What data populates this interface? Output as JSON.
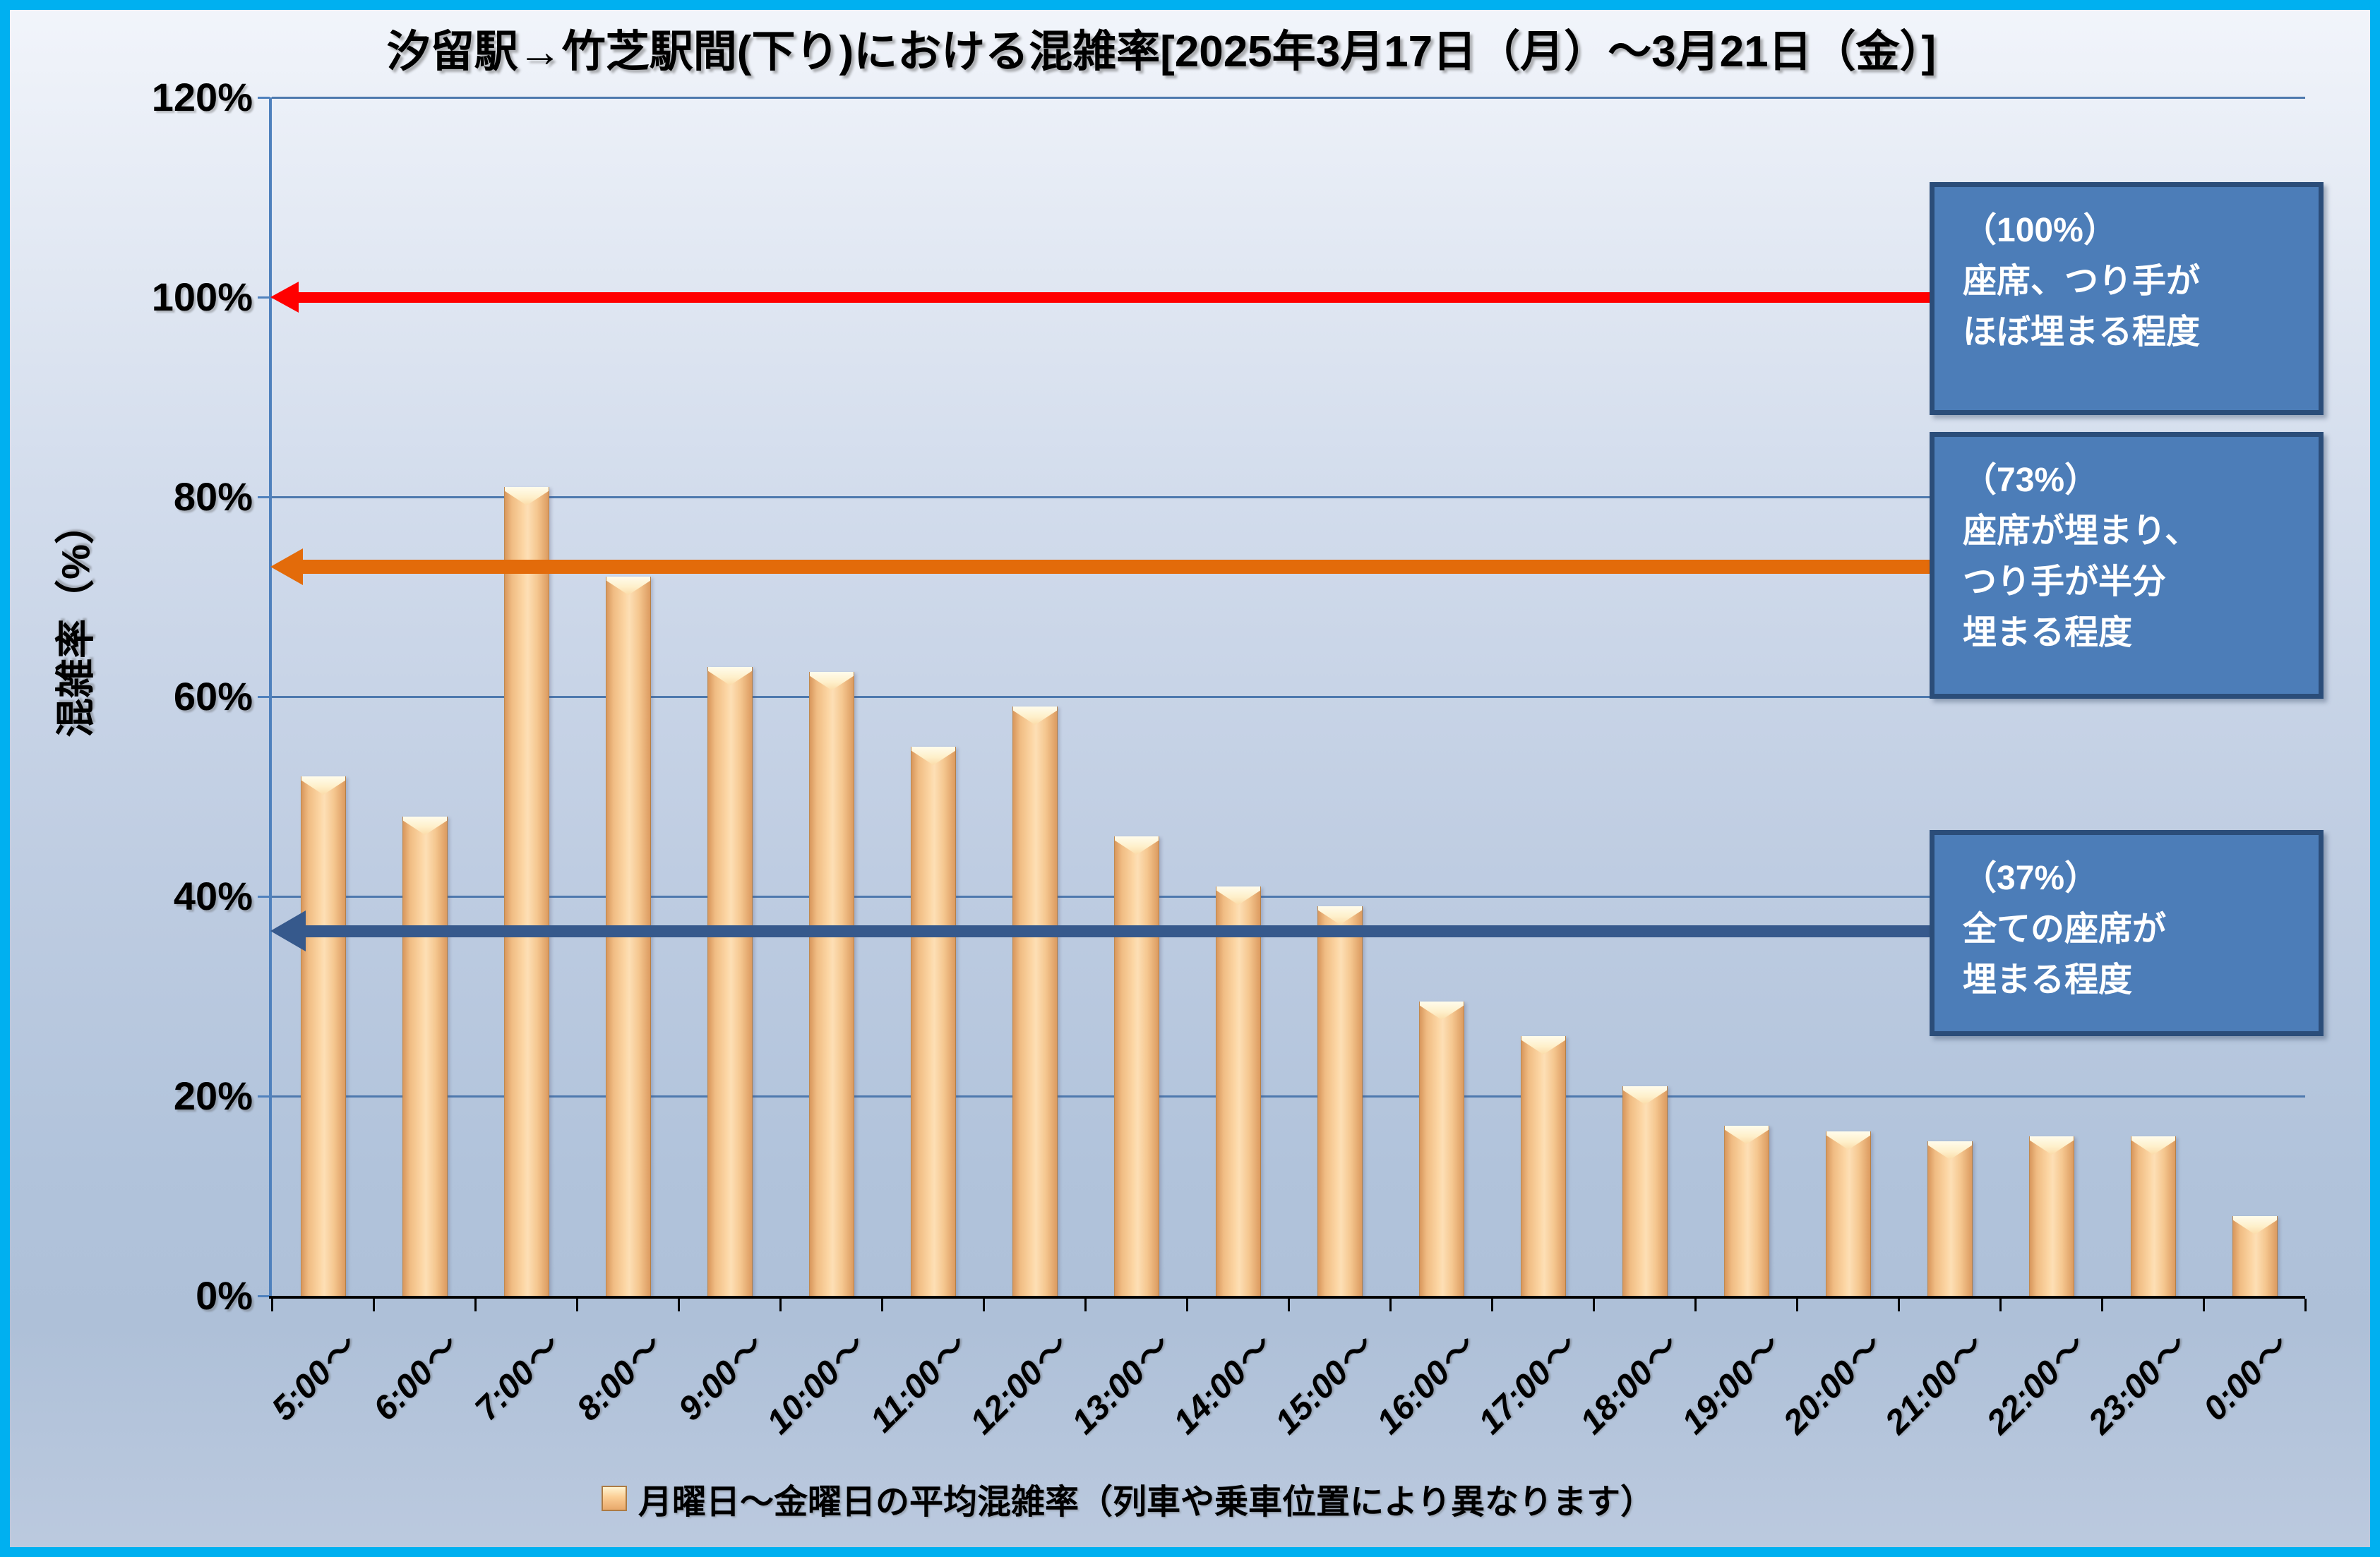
{
  "chart_data": {
    "type": "bar",
    "title": "汐留駅→竹芝駅間(下り)における混雑率[2025年3月17日（月）～3月21日（金）]",
    "xlabel": "",
    "ylabel": "混雑率（%）",
    "ylim": [
      0,
      120
    ],
    "y_tick_step": 20,
    "y_ticks": [
      "120%",
      "100%",
      "80%",
      "60%",
      "40%",
      "20%",
      "0%"
    ],
    "grid": true,
    "legend_position": "bottom",
    "legend_label": "月曜日～金曜日の平均混雑率（列車や乗車位置により異なります）",
    "categories": [
      "5:00～",
      "6:00～",
      "7:00～",
      "8:00～",
      "9:00～",
      "10:00～",
      "11:00～",
      "12:00～",
      "13:00～",
      "14:00～",
      "15:00～",
      "16:00～",
      "17:00～",
      "18:00～",
      "19:00～",
      "20:00～",
      "21:00～",
      "22:00～",
      "23:00～",
      "0:00～"
    ],
    "values": [
      52,
      48,
      81,
      72,
      63,
      62.5,
      55,
      59,
      46,
      41,
      39,
      29.5,
      26,
      21,
      17,
      16.5,
      15.5,
      16,
      16,
      8
    ],
    "reference_arrows": [
      {
        "value": 100,
        "color": "#FF0000",
        "annotation_lines": [
          "（100%）",
          "座席、つり手が",
          "ほぼ埋まる程度"
        ]
      },
      {
        "value": 73,
        "color": "#E36B0A",
        "annotation_lines": [
          "（73%）",
          "座席が埋まり、",
          "つり手が半分",
          "埋まる程度"
        ]
      },
      {
        "value": 37,
        "color": "#36598C",
        "annotation_lines": [
          "（37%）",
          "全ての座席が",
          "埋まる程度"
        ]
      }
    ],
    "colors": {
      "bar_fill": "#FBCD94",
      "bar_edge": "#DC9B60",
      "bar_top_highlight": "#FFF6D8",
      "gridline": "#4E79AE",
      "y_axis": "#4F81BD",
      "x_axis": "#000000",
      "callout_fill": "#4C7DB8",
      "callout_border": "#2B4D79",
      "callout_text": "#FFFFFF",
      "frame": "#00B0F0",
      "arrow_100": "#FF0000",
      "arrow_73": "#E36B0A",
      "arrow_37": "#36598C"
    }
  }
}
